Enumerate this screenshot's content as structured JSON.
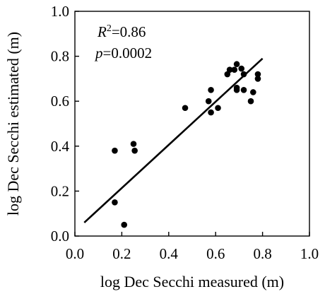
{
  "chart_data": {
    "type": "scatter",
    "title": "",
    "xlabel": "log Dec Secchi measured (m)",
    "ylabel": "log Dec Secchi estimated (m)",
    "xlim": [
      0.0,
      1.0
    ],
    "ylim": [
      0.0,
      1.0
    ],
    "x_ticks": [
      "0.0",
      "0.2",
      "0.4",
      "0.6",
      "0.8",
      "1.0"
    ],
    "y_ticks": [
      "0.0",
      "0.2",
      "0.4",
      "0.6",
      "0.8",
      "1.0"
    ],
    "grid": false,
    "legend": "none",
    "annotations": {
      "r2_symbol": "R",
      "r2_sup": "2",
      "r2_value": "=0.86",
      "p_symbol": "p",
      "p_value": "=0.0002"
    },
    "points": [
      {
        "x": 0.17,
        "y": 0.38
      },
      {
        "x": 0.17,
        "y": 0.15
      },
      {
        "x": 0.21,
        "y": 0.05
      },
      {
        "x": 0.25,
        "y": 0.41
      },
      {
        "x": 0.255,
        "y": 0.38
      },
      {
        "x": 0.47,
        "y": 0.57
      },
      {
        "x": 0.57,
        "y": 0.6
      },
      {
        "x": 0.58,
        "y": 0.65
      },
      {
        "x": 0.58,
        "y": 0.55
      },
      {
        "x": 0.61,
        "y": 0.57
      },
      {
        "x": 0.65,
        "y": 0.72
      },
      {
        "x": 0.66,
        "y": 0.74
      },
      {
        "x": 0.68,
        "y": 0.74
      },
      {
        "x": 0.69,
        "y": 0.765
      },
      {
        "x": 0.69,
        "y": 0.66
      },
      {
        "x": 0.69,
        "y": 0.65
      },
      {
        "x": 0.71,
        "y": 0.745
      },
      {
        "x": 0.72,
        "y": 0.72
      },
      {
        "x": 0.72,
        "y": 0.65
      },
      {
        "x": 0.75,
        "y": 0.6
      },
      {
        "x": 0.76,
        "y": 0.64
      },
      {
        "x": 0.78,
        "y": 0.72
      },
      {
        "x": 0.78,
        "y": 0.7
      }
    ],
    "fit_line": {
      "x": [
        0.04,
        0.8
      ],
      "y": [
        0.06,
        0.79
      ]
    },
    "colors": {
      "points": "#000000",
      "line": "#000000",
      "axes": "#000000"
    }
  }
}
